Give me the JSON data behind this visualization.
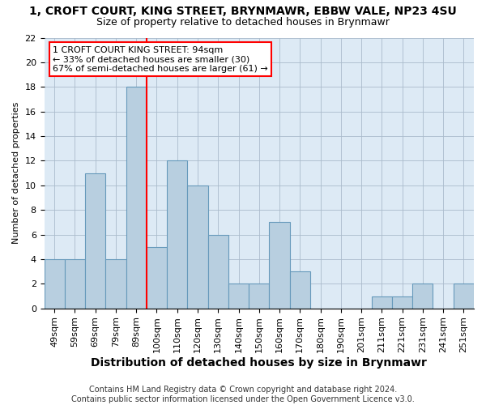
{
  "title": "1, CROFT COURT, KING STREET, BRYNMAWR, EBBW VALE, NP23 4SU",
  "subtitle": "Size of property relative to detached houses in Brynmawr",
  "xlabel": "Distribution of detached houses by size in Brynmawr",
  "ylabel": "Number of detached properties",
  "bin_labels": [
    "49sqm",
    "59sqm",
    "69sqm",
    "79sqm",
    "89sqm",
    "100sqm",
    "110sqm",
    "120sqm",
    "130sqm",
    "140sqm",
    "150sqm",
    "160sqm",
    "170sqm",
    "180sqm",
    "190sqm",
    "201sqm",
    "211sqm",
    "221sqm",
    "231sqm",
    "241sqm",
    "251sqm"
  ],
  "bar_heights": [
    4,
    4,
    11,
    4,
    18,
    5,
    12,
    10,
    6,
    2,
    2,
    7,
    3,
    0,
    0,
    0,
    1,
    1,
    2,
    0,
    2
  ],
  "bar_color": "#b8cfe0",
  "bar_edgecolor": "#6699bb",
  "bar_linewidth": 0.8,
  "vline_x_index": 4,
  "vline_color": "red",
  "vline_linewidth": 1.5,
  "annotation_lines": [
    "1 CROFT COURT KING STREET: 94sqm",
    "← 33% of detached houses are smaller (30)",
    "67% of semi-detached houses are larger (61) →"
  ],
  "annotation_fontsize": 8,
  "ylim": [
    0,
    22
  ],
  "yticks": [
    0,
    2,
    4,
    6,
    8,
    10,
    12,
    14,
    16,
    18,
    20,
    22
  ],
  "tick_fontsize": 8,
  "xlabel_fontsize": 10,
  "ylabel_fontsize": 8,
  "title_fontsize": 10,
  "subtitle_fontsize": 9,
  "footer_line1": "Contains HM Land Registry data © Crown copyright and database right 2024.",
  "footer_line2": "Contains public sector information licensed under the Open Government Licence v3.0.",
  "footer_fontsize": 7,
  "plot_bg_color": "#ddeaf5",
  "fig_bg_color": "#ffffff",
  "grid_color": "#aabbcc"
}
